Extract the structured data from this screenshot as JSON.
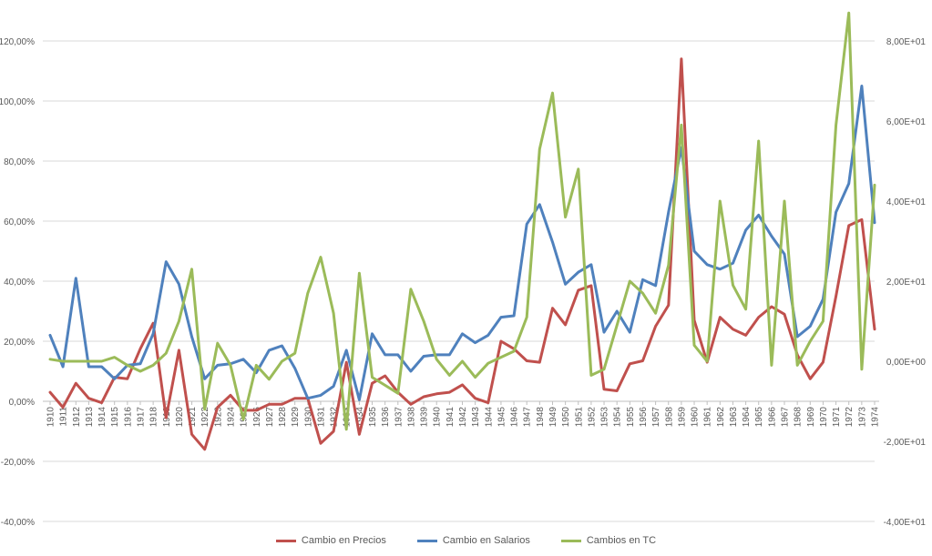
{
  "chart_data": {
    "type": "line",
    "x": [
      "1910",
      "1911",
      "1912",
      "1913",
      "1914",
      "1915",
      "1916",
      "1917",
      "1918",
      "1919",
      "1920",
      "1921",
      "1922",
      "1923",
      "1924",
      "1925",
      "1926",
      "1927",
      "1928",
      "1929",
      "1930",
      "1931",
      "1932",
      "1933",
      "1934",
      "1935",
      "1936",
      "1937",
      "1938",
      "1939",
      "1940",
      "1941",
      "1942",
      "1943",
      "1944",
      "1945",
      "1946",
      "1947",
      "1948",
      "1949",
      "1950",
      "1951",
      "1952",
      "1953",
      "1954",
      "1955",
      "1956",
      "1957",
      "1958",
      "1959",
      "1960",
      "1961",
      "1962",
      "1963",
      "1964",
      "1965",
      "1966",
      "1967",
      "1968",
      "1969",
      "1970",
      "1971",
      "1972",
      "1973",
      "1974"
    ],
    "y_left_ticks": [
      "120,00%",
      "100,00%",
      "80,00%",
      "60,00%",
      "40,00%",
      "20,00%",
      "0,00%",
      "-20,00%",
      "-40,00%"
    ],
    "y_right_ticks": [
      "8,00E+01",
      "6,00E+01",
      "4,00E+01",
      "2,00E+01",
      "0,00E+00",
      "-2,00E+01",
      "-4,00E+01"
    ],
    "ylim_left": [
      -40,
      120
    ],
    "ylim_right": [
      -40,
      80
    ],
    "series": [
      {
        "name": "Cambio en Precios",
        "axis": "left",
        "color": "#C0504D",
        "values": [
          3,
          -2,
          6,
          1,
          -0.5,
          8,
          7.5,
          17.5,
          26,
          -5.5,
          17,
          -11,
          -16,
          -2,
          2,
          -3,
          -3,
          -1,
          -1,
          1,
          1,
          -14,
          -10,
          13,
          -11,
          6,
          8.5,
          3,
          -1,
          1.5,
          2.5,
          3,
          5.5,
          1,
          -0.5,
          20,
          17.5,
          13.5,
          13,
          31,
          25.5,
          37,
          38.5,
          4,
          3.5,
          12.5,
          13.5,
          25,
          32,
          114,
          27,
          13,
          28,
          24,
          22,
          28,
          31.5,
          29,
          15.5,
          7.5,
          13,
          35,
          58.5,
          60.5,
          24
        ]
      },
      {
        "name": "Cambio en Salarios",
        "axis": "left",
        "color": "#4F81BD",
        "values": [
          22,
          11.5,
          41,
          11.5,
          11.5,
          7.5,
          12,
          12.5,
          22.5,
          46.5,
          39,
          21.5,
          7.5,
          12,
          12.5,
          14,
          9.5,
          17,
          18.5,
          11,
          1,
          2,
          5,
          17,
          0.5,
          22.5,
          15.5,
          15.5,
          10,
          15,
          15.5,
          15.5,
          22.5,
          19.5,
          22,
          28,
          28.5,
          59,
          65.5,
          53,
          39,
          43,
          45.5,
          23,
          30,
          23,
          40.5,
          38.5,
          63,
          84.5,
          50,
          45.5,
          44,
          46,
          57,
          62,
          55,
          49,
          21.5,
          25,
          34,
          63,
          72.5,
          105,
          59.5
        ]
      },
      {
        "name": "Cambios en TC",
        "axis": "right",
        "color": "#9BBB59",
        "values": [
          0.5,
          0,
          0,
          0,
          0,
          1,
          -1,
          -2.5,
          -1,
          2,
          10,
          23,
          -12,
          4.5,
          -1,
          -14.5,
          -1,
          -4.5,
          0,
          2,
          17,
          26,
          12,
          -17,
          22,
          -4,
          -6,
          -8,
          18,
          10,
          0.5,
          -3.5,
          0,
          -4,
          -0.5,
          1,
          2.5,
          11,
          53,
          67,
          36,
          48,
          -3.5,
          -2,
          9,
          20,
          17,
          12,
          24,
          59,
          4,
          0,
          40,
          19,
          13,
          55,
          -1,
          40,
          -1,
          5,
          10,
          59,
          87,
          -2,
          44
        ]
      }
    ],
    "legend_position": "bottom",
    "grid": "horizontal"
  }
}
